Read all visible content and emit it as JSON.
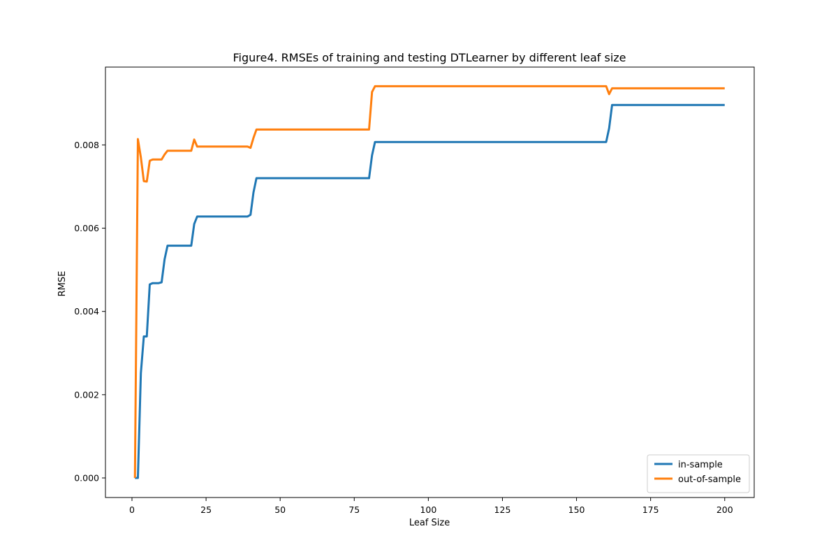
{
  "chart_data": {
    "type": "line",
    "title": "Figure4. RMSEs of training and testing DTLearner by different leaf size",
    "xlabel": "Leaf Size",
    "ylabel": "RMSE",
    "xlim": [
      -8.95,
      209.95
    ],
    "ylim": [
      -0.00047,
      0.00987
    ],
    "xticks": [
      0,
      25,
      50,
      75,
      100,
      125,
      150,
      175,
      200
    ],
    "xtick_labels": [
      "0",
      "25",
      "50",
      "75",
      "100",
      "125",
      "150",
      "175",
      "200"
    ],
    "yticks": [
      0,
      0.002,
      0.004,
      0.006,
      0.008
    ],
    "ytick_labels": [
      "0.000",
      "0.002",
      "0.004",
      "0.006",
      "0.008"
    ],
    "grid": false,
    "legend_position": "lower-right",
    "series": [
      {
        "name": "in-sample",
        "color": "#1f77b4",
        "points": [
          [
            1,
            0.0
          ],
          [
            2,
            0.0
          ],
          [
            3,
            0.00252
          ],
          [
            4,
            0.0034
          ],
          [
            5,
            0.0034
          ],
          [
            6,
            0.00465
          ],
          [
            7,
            0.00468
          ],
          [
            8,
            0.00468
          ],
          [
            9,
            0.00468
          ],
          [
            10,
            0.0047
          ],
          [
            11,
            0.00525
          ],
          [
            12,
            0.00558
          ],
          [
            20,
            0.00558
          ],
          [
            21,
            0.0061
          ],
          [
            22,
            0.00628
          ],
          [
            39,
            0.00628
          ],
          [
            40,
            0.00632
          ],
          [
            41,
            0.00686
          ],
          [
            42,
            0.0072
          ],
          [
            80,
            0.0072
          ],
          [
            81,
            0.00775
          ],
          [
            82,
            0.00807
          ],
          [
            160,
            0.00807
          ],
          [
            161,
            0.0084
          ],
          [
            162,
            0.00896
          ],
          [
            200,
            0.00896
          ]
        ]
      },
      {
        "name": "out-of-sample",
        "color": "#ff7f0e",
        "points": [
          [
            1,
            0.0
          ],
          [
            2,
            0.00814
          ],
          [
            3,
            0.0077
          ],
          [
            4,
            0.00713
          ],
          [
            5,
            0.00712
          ],
          [
            6,
            0.00762
          ],
          [
            7,
            0.00765
          ],
          [
            8,
            0.00765
          ],
          [
            9,
            0.00765
          ],
          [
            10,
            0.00765
          ],
          [
            11,
            0.00777
          ],
          [
            12,
            0.00786
          ],
          [
            20,
            0.00786
          ],
          [
            21,
            0.00813
          ],
          [
            22,
            0.00796
          ],
          [
            39,
            0.00796
          ],
          [
            40,
            0.00793
          ],
          [
            41,
            0.00817
          ],
          [
            42,
            0.00837
          ],
          [
            80,
            0.00837
          ],
          [
            81,
            0.00927
          ],
          [
            82,
            0.00941
          ],
          [
            160,
            0.00941
          ],
          [
            161,
            0.00922
          ],
          [
            162,
            0.00936
          ],
          [
            200,
            0.00936
          ]
        ]
      }
    ]
  }
}
